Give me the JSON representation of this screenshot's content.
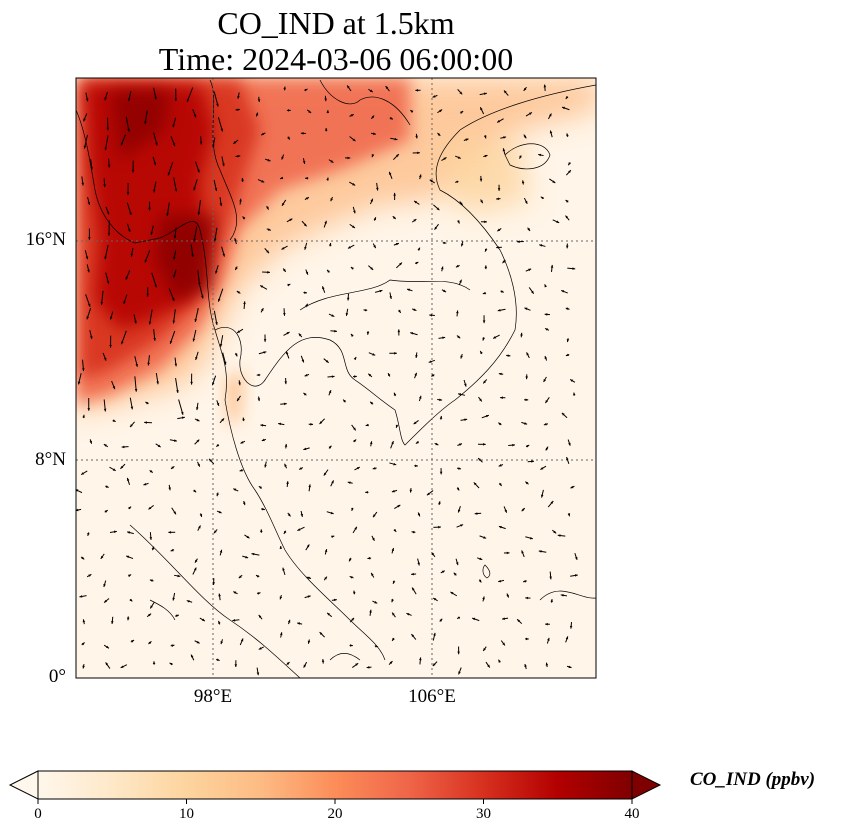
{
  "title": {
    "line1": "CO_IND at 1.5km",
    "line2": "Time: 2024-03-06 06:00:00"
  },
  "axes": {
    "y_ticks": [
      "16°N",
      "8°N",
      "0°"
    ],
    "x_ticks": [
      "98°E",
      "106°E"
    ],
    "lon_range": [
      93,
      112
    ],
    "lat_range": [
      0,
      22
    ],
    "gridlines": "dotted"
  },
  "colorbar": {
    "label": "CO_IND (ppbv)",
    "ticks": [
      "0",
      "10",
      "20",
      "30",
      "40"
    ],
    "range": [
      0,
      40
    ],
    "extend": "both",
    "colormap": "OrRd",
    "colors": [
      "#fff7ec",
      "#fee8c8",
      "#fdd49e",
      "#fdbb84",
      "#fc8d59",
      "#ef6548",
      "#d7301f",
      "#b30000",
      "#7f0000"
    ]
  },
  "colors": {
    "land_fill": "#fff5e8",
    "coastline": "#000000",
    "grid": "#666666"
  }
}
